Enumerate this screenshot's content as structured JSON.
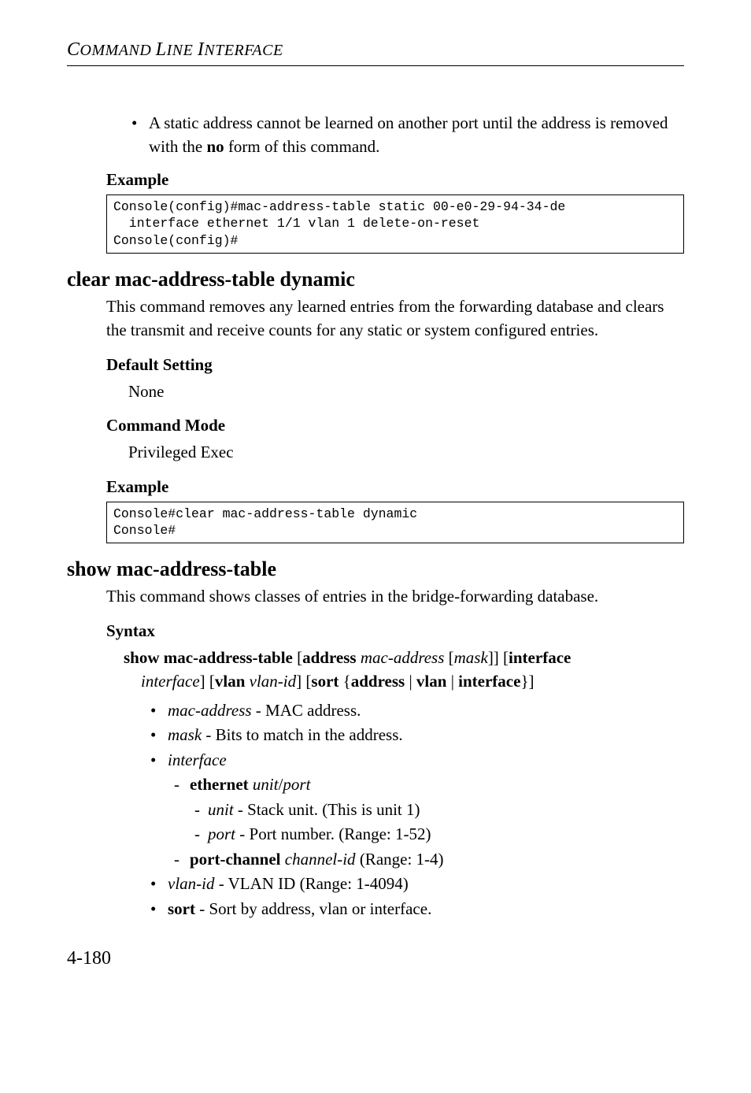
{
  "running_head": {
    "part1": "C",
    "part2": "OMMAND ",
    "part3": "L",
    "part4": "INE ",
    "part5": "I",
    "part6": "NTERFACE"
  },
  "top_bullet": {
    "dot": "•",
    "text_a": "A static address cannot be learned on another port until the address is removed with the ",
    "no": "no",
    "text_b": " form of this command."
  },
  "example_label": "Example",
  "code1": "Console(config)#mac-address-table static 00-e0-29-94-34-de \n  interface ethernet 1/1 vlan 1 delete-on-reset\nConsole(config)#",
  "h2_clear": "clear mac-address-table dynamic",
  "clear_para": "This command removes any learned entries from the forwarding database and clears the transmit and receive counts for any static or system configured entries.",
  "default_setting_label": "Default Setting",
  "none_text": "None",
  "command_mode_label": "Command Mode",
  "priv_exec": "Privileged Exec",
  "code2": "Console#clear mac-address-table dynamic\nConsole#",
  "h2_show": "show mac-address-table",
  "show_para": "This command shows classes of entries in the bridge-forwarding database.",
  "syntax_label": "Syntax",
  "syntax": {
    "cmd": "show mac-address-table",
    "open1": " [",
    "address_kw": "address",
    "sp1": " ",
    "mac_addr": "mac-address",
    "open2": " [",
    "mask": "mask",
    "close2": "]] [",
    "interface_kw": "interface",
    "line2_iface": "interface",
    "close3": "] [",
    "vlan_kw": "vlan",
    "sp2": " ",
    "vlan_id": "vlan-id",
    "close4": "] [",
    "sort_kw": "sort",
    "brace_o": " {",
    "addr_kw2": "address",
    "pipe1": " | ",
    "vlan_kw2": "vlan",
    "pipe2": " | ",
    "iface_kw2": "interface",
    "brace_c": "}]"
  },
  "li": {
    "dot": "•",
    "dash": "-",
    "mac_addr_i": "mac-address",
    "mac_addr_t": " - MAC address.",
    "mask_i": "mask",
    "mask_t": " - Bits to match in the address.",
    "interface_i": "interface",
    "eth_kw": "ethernet",
    "eth_arg": " unit",
    "eth_slash": "/",
    "eth_port": "port",
    "unit_i": "unit",
    "unit_t": " - Stack unit. (This is unit 1)",
    "port_i": "port",
    "port_t": " - Port number. (Range: 1-52)",
    "pc_kw": "port-channel",
    "pc_arg": " channel-id",
    "pc_t": " (Range: 1-4)",
    "vlan_i": "vlan-id",
    "vlan_t": " - VLAN ID (Range: 1-4094)",
    "sort_kw": "sort",
    "sort_t": " - Sort by address, vlan or interface."
  },
  "page_number": "4-180"
}
